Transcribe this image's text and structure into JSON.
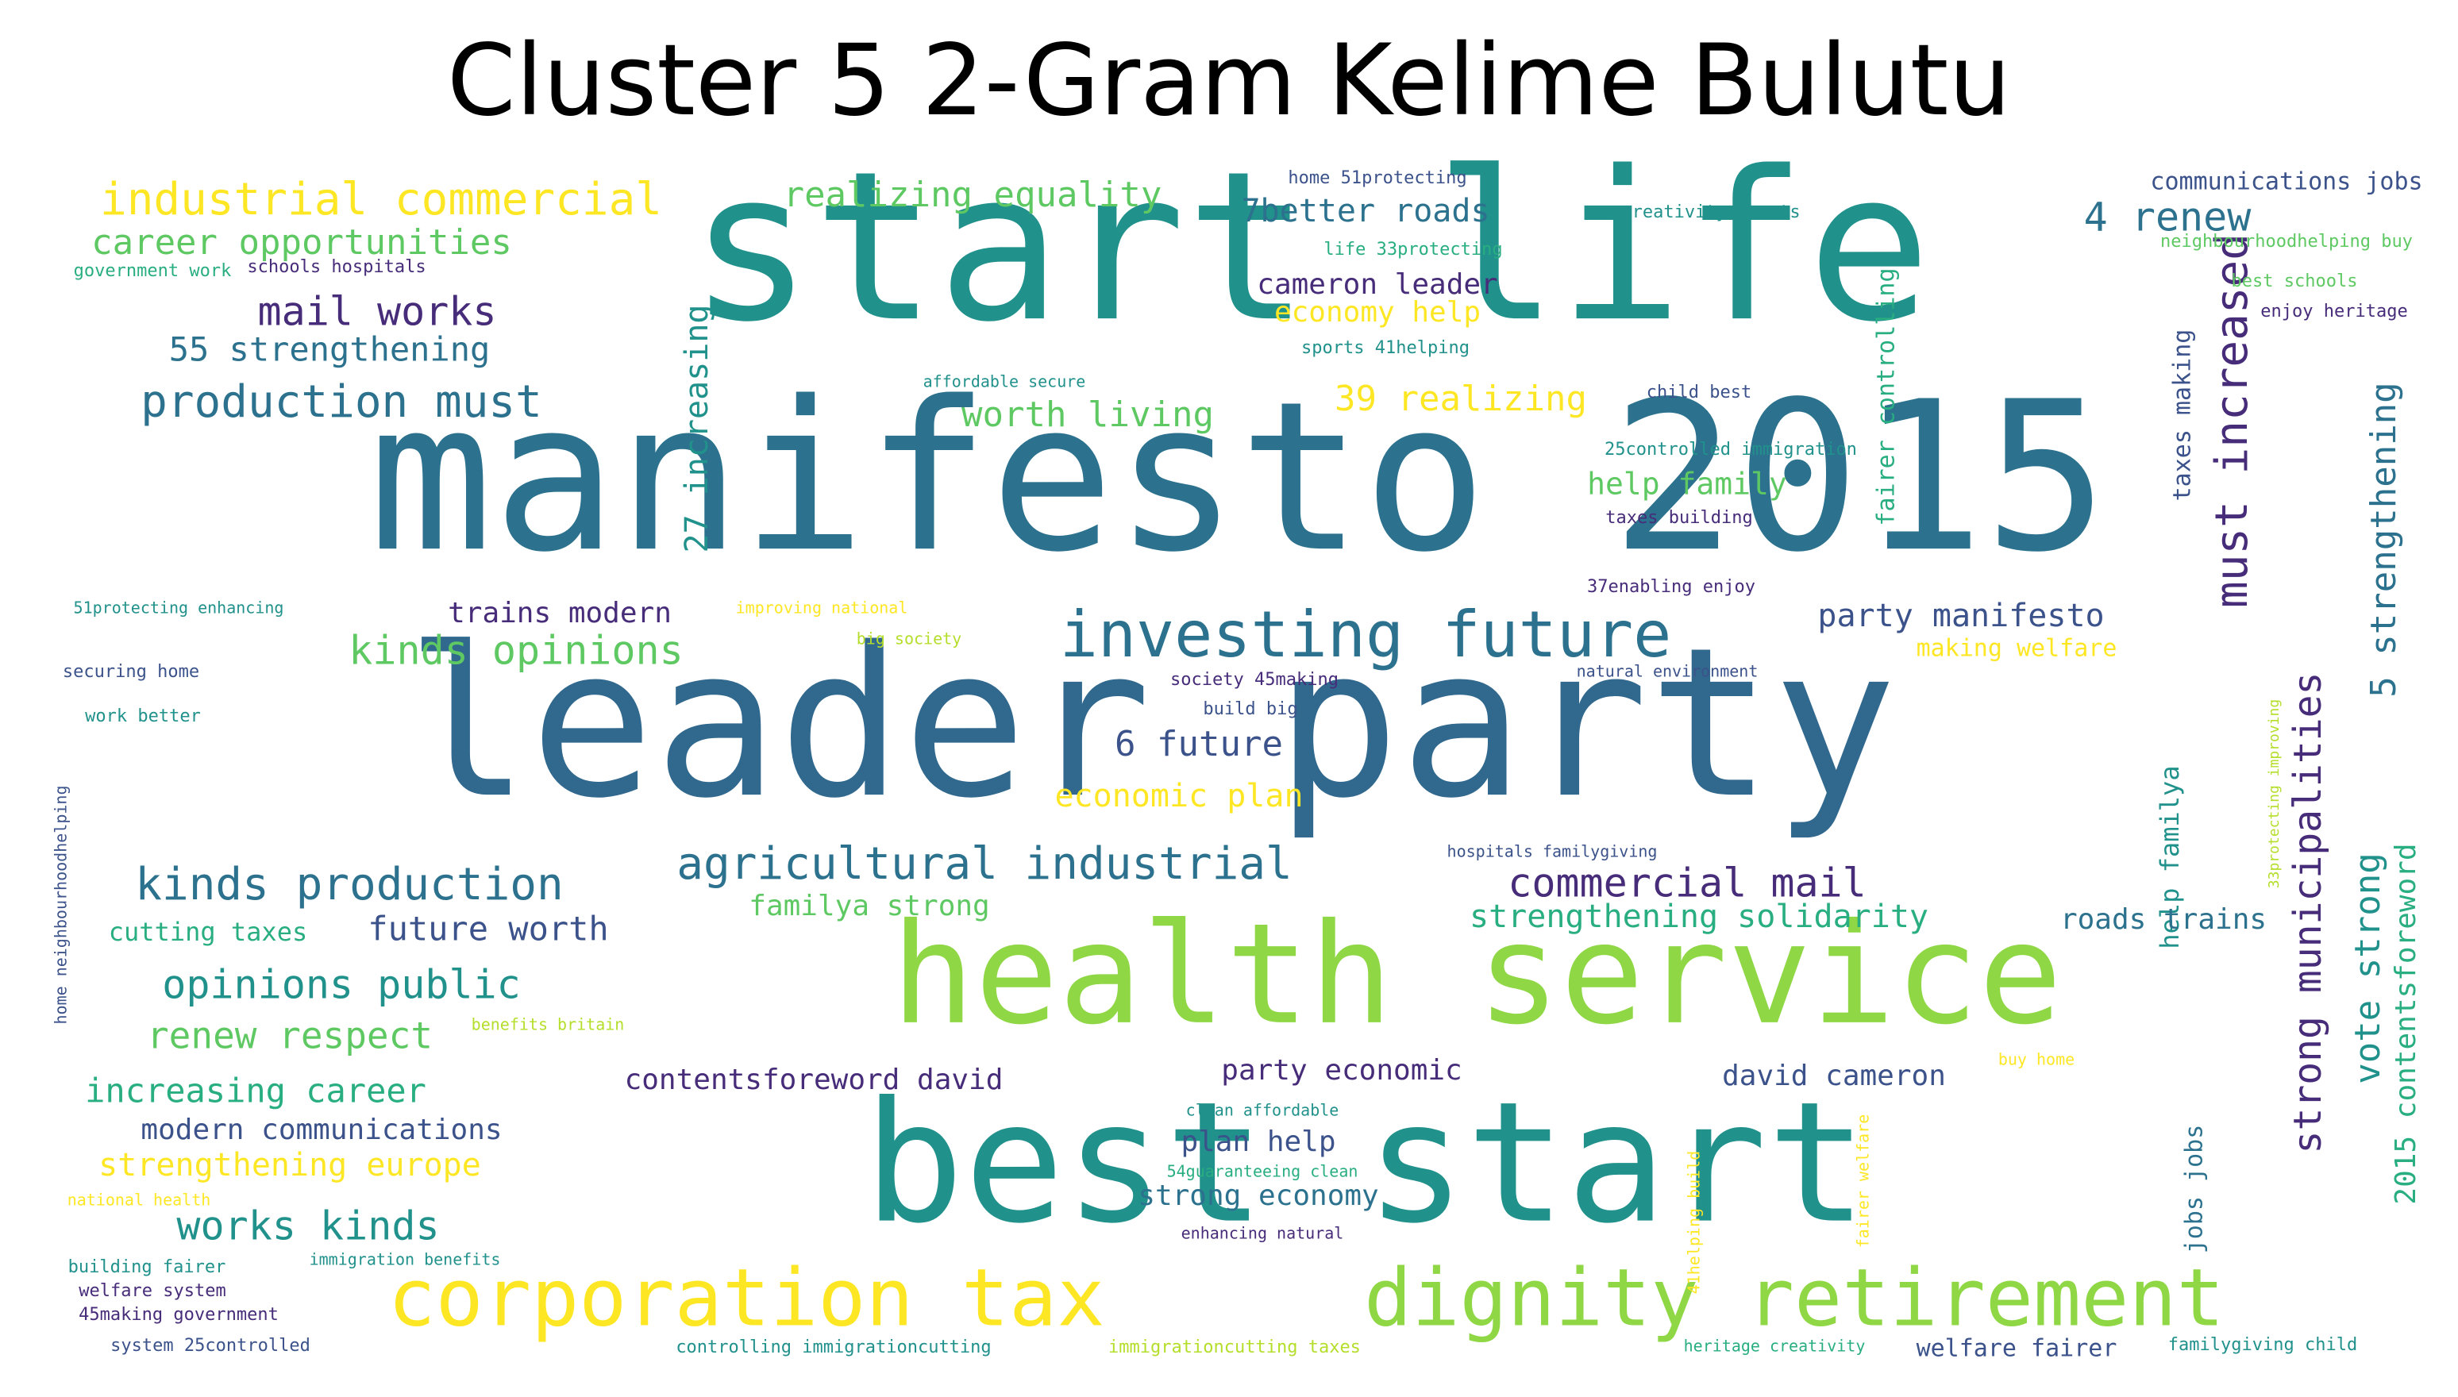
{
  "title": "Cluster 5 2-Gram Kelime Bulutu",
  "palette": {
    "dark_purple": "#472c7a",
    "indigo": "#3b528b",
    "blue": "#31688e",
    "teal_blue": "#2c728e",
    "teal": "#21918c",
    "green_teal": "#28ae80",
    "green": "#5ec962",
    "lime": "#8fd744",
    "yellow_green": "#b5de2b",
    "yellow": "#fde725"
  },
  "words": [
    {
      "text": "start life",
      "c": "teal"
    },
    {
      "text": "manifesto 2015",
      "c": "teal_blue"
    },
    {
      "text": "leader party",
      "c": "blue"
    },
    {
      "text": "health service",
      "c": "lime"
    },
    {
      "text": "best start",
      "c": "teal"
    },
    {
      "text": "corporation tax",
      "c": "yellow"
    },
    {
      "text": "dignity retirement",
      "c": "lime"
    },
    {
      "text": "investing future",
      "c": "teal_blue"
    },
    {
      "text": "agricultural industrial",
      "c": "teal_blue"
    },
    {
      "text": "kinds production",
      "c": "teal_blue"
    },
    {
      "text": "industrial commercial",
      "c": "yellow"
    },
    {
      "text": "career opportunities",
      "c": "green"
    },
    {
      "text": "mail works",
      "c": "dark_purple"
    },
    {
      "text": "55 strengthening",
      "c": "teal_blue"
    },
    {
      "text": "production must",
      "c": "teal_blue"
    },
    {
      "text": "realizing equality",
      "c": "green"
    },
    {
      "text": "7better roads",
      "c": "teal_blue"
    },
    {
      "text": "cameron leader",
      "c": "dark_purple"
    },
    {
      "text": "economy help",
      "c": "yellow"
    },
    {
      "text": "39 realizing",
      "c": "yellow"
    },
    {
      "text": "worth living",
      "c": "green"
    },
    {
      "text": "help family",
      "c": "green"
    },
    {
      "text": "27 increasing",
      "c": "teal"
    },
    {
      "text": "kinds opinions",
      "c": "green"
    },
    {
      "text": "trains modern",
      "c": "dark_purple"
    },
    {
      "text": "6 future",
      "c": "indigo"
    },
    {
      "text": "economic plan",
      "c": "yellow"
    },
    {
      "text": "party manifesto",
      "c": "indigo"
    },
    {
      "text": "making welfare",
      "c": "yellow"
    },
    {
      "text": "4 renew",
      "c": "teal_blue"
    },
    {
      "text": "communications jobs",
      "c": "indigo"
    },
    {
      "text": "must increased",
      "c": "dark_purple"
    },
    {
      "text": "strong municipalities",
      "c": "dark_purple"
    },
    {
      "text": "5 strengthening",
      "c": "teal_blue"
    },
    {
      "text": "vote strong",
      "c": "teal"
    },
    {
      "text": "2015 contentsforeword",
      "c": "green_teal"
    },
    {
      "text": "help familya",
      "c": "teal"
    },
    {
      "text": "jobs jobs",
      "c": "teal_blue"
    },
    {
      "text": "taxes making",
      "c": "indigo"
    },
    {
      "text": "fairer controlling",
      "c": "green_teal"
    },
    {
      "text": "commercial mail",
      "c": "dark_purple"
    },
    {
      "text": "strengthening solidarity",
      "c": "green_teal"
    },
    {
      "text": "roads trains",
      "c": "teal_blue"
    },
    {
      "text": "familya strong",
      "c": "green"
    },
    {
      "text": "future worth",
      "c": "indigo"
    },
    {
      "text": "opinions public",
      "c": "teal"
    },
    {
      "text": "renew respect",
      "c": "green"
    },
    {
      "text": "increasing career",
      "c": "green_teal"
    },
    {
      "text": "modern communications",
      "c": "indigo"
    },
    {
      "text": "strengthening europe",
      "c": "yellow"
    },
    {
      "text": "works kinds",
      "c": "teal"
    },
    {
      "text": "contentsforeword david",
      "c": "dark_purple"
    },
    {
      "text": "party economic",
      "c": "dark_purple"
    },
    {
      "text": "david cameron",
      "c": "indigo"
    },
    {
      "text": "plan help",
      "c": "indigo"
    },
    {
      "text": "strong economy",
      "c": "teal_blue"
    },
    {
      "text": "cutting taxes",
      "c": "green_teal"
    },
    {
      "text": "welfare fairer",
      "c": "indigo"
    },
    {
      "text": "government work",
      "c": "green_teal"
    },
    {
      "text": "schools hospitals",
      "c": "dark_purple"
    },
    {
      "text": "home 51protecting",
      "c": "indigo"
    },
    {
      "text": "creativity sports",
      "c": "teal"
    },
    {
      "text": "life 33protecting",
      "c": "green_teal"
    },
    {
      "text": "neighbourhoodhelping buy",
      "c": "green"
    },
    {
      "text": "best schools",
      "c": "green"
    },
    {
      "text": "enjoy heritage",
      "c": "dark_purple"
    },
    {
      "text": "sports 41helping",
      "c": "teal"
    },
    {
      "text": "affordable secure",
      "c": "teal"
    },
    {
      "text": "child best",
      "c": "indigo"
    },
    {
      "text": "25controlled immigration",
      "c": "teal"
    },
    {
      "text": "taxes building",
      "c": "dark_purple"
    },
    {
      "text": "37enabling enjoy",
      "c": "dark_purple"
    },
    {
      "text": "51protecting enhancing",
      "c": "teal"
    },
    {
      "text": "improving national",
      "c": "yellow"
    },
    {
      "text": "big society",
      "c": "yellow_green"
    },
    {
      "text": "natural environment",
      "c": "indigo"
    },
    {
      "text": "securing home",
      "c": "indigo"
    },
    {
      "text": "society 45making",
      "c": "dark_purple"
    },
    {
      "text": "build big",
      "c": "indigo"
    },
    {
      "text": "work better",
      "c": "teal"
    },
    {
      "text": "home neighbourhoodhelping",
      "c": "indigo"
    },
    {
      "text": "33protecting improving",
      "c": "yellow_green"
    },
    {
      "text": "hospitals familygiving",
      "c": "indigo"
    },
    {
      "text": "benefits britain",
      "c": "yellow_green"
    },
    {
      "text": "clean affordable",
      "c": "teal"
    },
    {
      "text": "buy home",
      "c": "yellow"
    },
    {
      "text": "54guaranteeing clean",
      "c": "green_teal"
    },
    {
      "text": "41helping build",
      "c": "yellow"
    },
    {
      "text": "fairer welfare",
      "c": "yellow"
    },
    {
      "text": "enhancing natural",
      "c": "dark_purple"
    },
    {
      "text": "national health",
      "c": "yellow"
    },
    {
      "text": "immigration benefits",
      "c": "teal"
    },
    {
      "text": "building fairer",
      "c": "teal"
    },
    {
      "text": "welfare system",
      "c": "dark_purple"
    },
    {
      "text": "45making government",
      "c": "dark_purple"
    },
    {
      "text": "system 25controlled",
      "c": "indigo"
    },
    {
      "text": "controlling immigrationcutting",
      "c": "teal"
    },
    {
      "text": "immigrationcutting taxes",
      "c": "yellow_green"
    },
    {
      "text": "heritage creativity",
      "c": "green_teal"
    },
    {
      "text": "familygiving child",
      "c": "teal"
    }
  ]
}
